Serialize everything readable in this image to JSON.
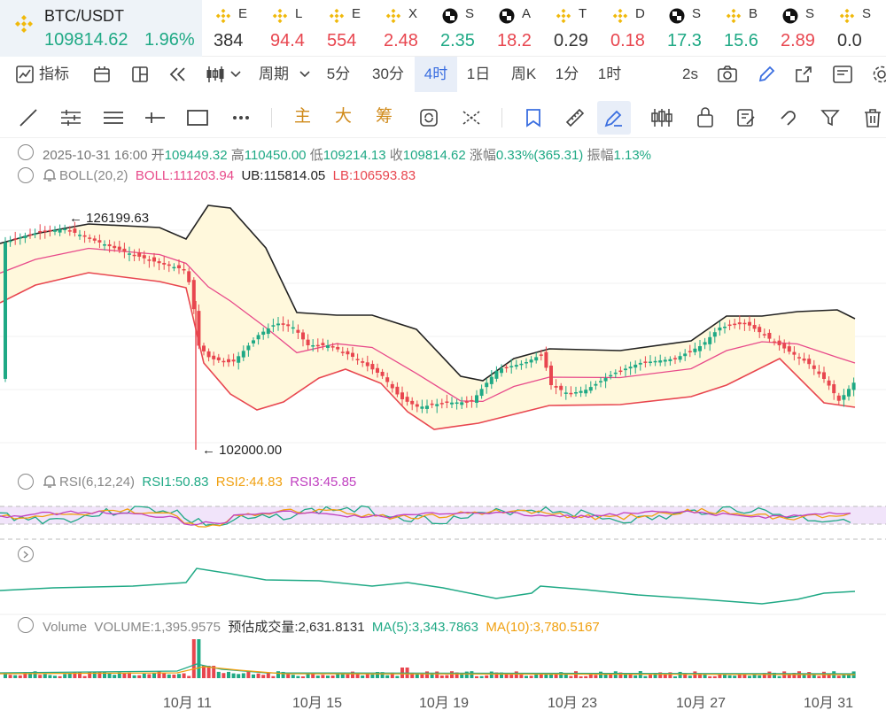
{
  "ticker": {
    "main": {
      "symbol": "BTC/USDT",
      "price": "109814.62",
      "change": "1.96%"
    },
    "items": [
      {
        "name": "E",
        "price": "384",
        "color": "#333333",
        "icon": "bnb-icon"
      },
      {
        "name": "L",
        "price": "94.4",
        "color": "#e8464f",
        "icon": "bnb-icon"
      },
      {
        "name": "E",
        "price": "554",
        "color": "#e8464f",
        "icon": "bnb-icon"
      },
      {
        "name": "X",
        "price": "2.48",
        "color": "#e8464f",
        "icon": "bnb-icon"
      },
      {
        "name": "S",
        "price": "2.35",
        "color": "#1fa985",
        "icon": "checker-icon"
      },
      {
        "name": "A",
        "price": "18.2",
        "color": "#e8464f",
        "icon": "checker-icon"
      },
      {
        "name": "T",
        "price": "0.29",
        "color": "#333333",
        "icon": "bnb-icon"
      },
      {
        "name": "D",
        "price": "0.18",
        "color": "#e8464f",
        "icon": "bnb-icon"
      },
      {
        "name": "S",
        "price": "17.3",
        "color": "#1fa985",
        "icon": "checker-icon"
      },
      {
        "name": "B",
        "price": "15.6",
        "color": "#1fa985",
        "icon": "bnb-icon"
      },
      {
        "name": "S",
        "price": "2.89",
        "color": "#e8464f",
        "icon": "checker-icon"
      },
      {
        "name": "S",
        "price": "0.0",
        "color": "#333333",
        "icon": "bnb-icon"
      }
    ]
  },
  "toolbar": {
    "indicators_label": "指标",
    "period_label": "周期",
    "intervals": [
      "5分",
      "30分",
      "4时",
      "1日",
      "周K",
      "1分",
      "1时"
    ],
    "active_interval": "4时",
    "refresh_label": "2s"
  },
  "drawbar": {
    "main_label": "主",
    "big_label": "大",
    "chip_label": "筹"
  },
  "ohlc": {
    "datetime": "2025-10-31 16:00",
    "open_label": "开",
    "open": "109449.32",
    "high_label": "高",
    "high": "110450.00",
    "low_label": "低",
    "low": "109214.13",
    "close_label": "收",
    "close": "109814.62",
    "change_label": "涨幅",
    "change": "0.33%(365.31)",
    "amp_label": "振幅",
    "amp": "1.13%"
  },
  "boll": {
    "name": "BOLL(20,2)",
    "boll": "BOLL:111203.94",
    "ub": "UB:115814.05",
    "lb": "LB:106593.83"
  },
  "annotations": {
    "max": "126199.63",
    "min": "102000.00"
  },
  "rsi": {
    "name": "RSI(6,12,24)",
    "rsi1": "RSI1:50.83",
    "rsi2": "RSI2:44.83",
    "rsi3": "RSI3:45.85"
  },
  "volume": {
    "name": "Volume",
    "vol": "VOLUME:1,395.9575",
    "est": "预估成交量:2,631.8131",
    "ma5": "MA(5):3,343.7863",
    "ma10": "MA(10):3,780.5167"
  },
  "xaxis": [
    "10月 11",
    "10月 15",
    "10月 19",
    "10月 23",
    "10月 27",
    "10月 31"
  ],
  "colors": {
    "up": "#1fa985",
    "down": "#e8464f",
    "accent": "#3a6ee0",
    "boll": "#e84a8a",
    "bnb": "#f0b90b"
  }
}
